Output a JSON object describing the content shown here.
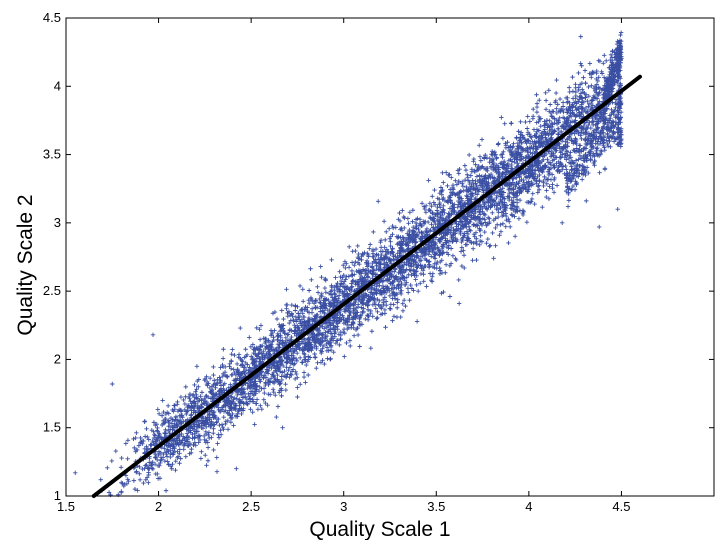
{
  "chart_data": {
    "type": "scatter",
    "title": "",
    "xlabel": "Quality Scale 1",
    "ylabel": "Quality Scale 2",
    "xlim": [
      1.5,
      5.0
    ],
    "ylim": [
      1.0,
      4.5
    ],
    "xticks": [
      1.5,
      2,
      2.5,
      3,
      3.5,
      4,
      4.5
    ],
    "xtick_labels": [
      "1.5",
      "2",
      "2.5",
      "3",
      "3.5",
      "4",
      "4.5"
    ],
    "yticks": [
      1,
      1.5,
      2,
      2.5,
      3,
      3.5,
      4,
      4.5
    ],
    "ytick_labels": [
      "1",
      "1.5",
      "2",
      "2.5",
      "3",
      "3.5",
      "4",
      "4.5"
    ],
    "grid": false,
    "marker": "+",
    "colors": {
      "points": "#3a4fa3",
      "fit_line": "#000000"
    },
    "fit_line": {
      "x": [
        1.65,
        4.6
      ],
      "y": [
        1.0,
        4.07
      ]
    },
    "points_summary": {
      "approx_count": 5000,
      "x_range": [
        1.55,
        4.5
      ],
      "trend": "y ≈ 1.04·x − 0.72, spread ≈ ±0.15",
      "clusters": [
        {
          "x": [
            4.4,
            4.5
          ],
          "y": [
            3.85,
            4.3
          ]
        },
        {
          "x": [
            4.2,
            4.5
          ],
          "y": [
            3.3,
            3.8
          ]
        }
      ],
      "outliers": [
        {
          "x": 1.97,
          "y": 2.18
        },
        {
          "x": 1.75,
          "y": 1.82
        },
        {
          "x": 2.42,
          "y": 1.2
        },
        {
          "x": 2.67,
          "y": 1.5
        },
        {
          "x": 4.18,
          "y": 3.0
        },
        {
          "x": 4.38,
          "y": 2.97
        },
        {
          "x": 1.55,
          "y": 1.17
        },
        {
          "x": 4.48,
          "y": 3.1
        }
      ]
    }
  }
}
